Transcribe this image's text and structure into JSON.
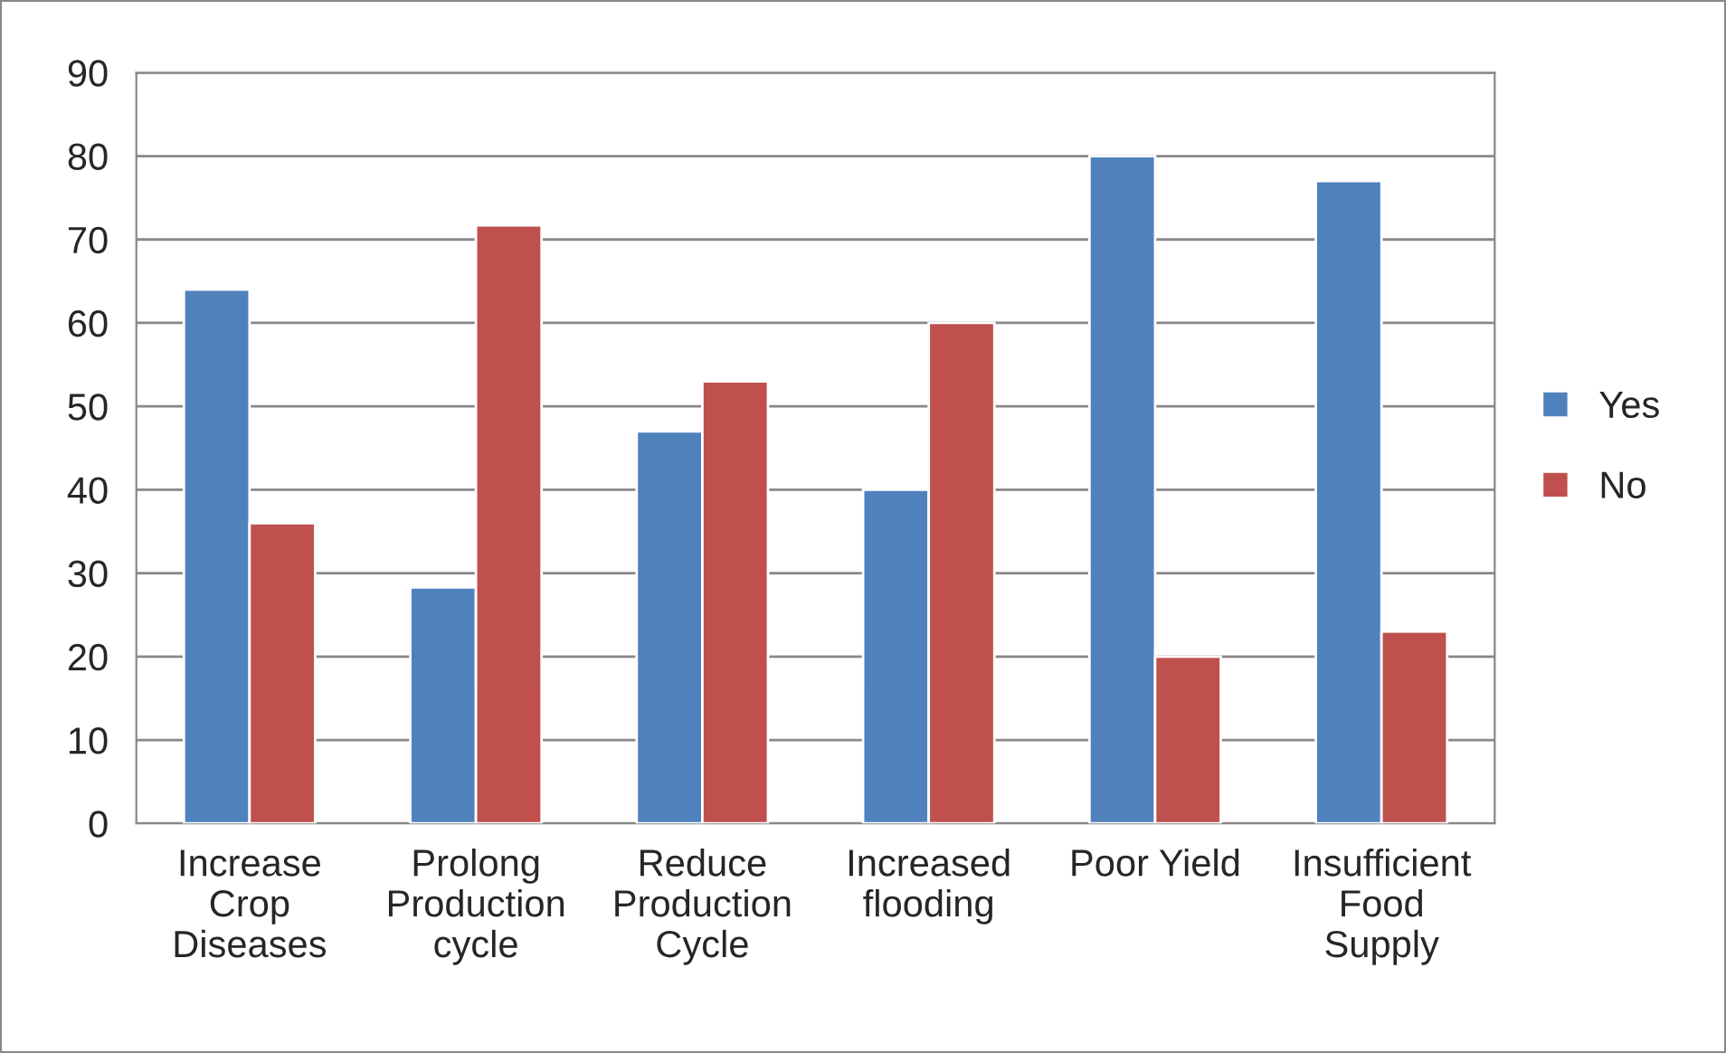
{
  "chart_data": {
    "type": "bar",
    "categories": [
      "Increase\nCrop\nDiseases",
      "Prolong\nProduction\ncycle",
      "Reduce\nProduction\nCycle",
      "Increased\nflooding",
      "Poor Yield",
      "Insufficient\nFood\nSupply"
    ],
    "series": [
      {
        "name": "Yes",
        "color": "#4f81bd",
        "values": [
          64,
          28.3,
          47,
          40,
          80,
          77
        ]
      },
      {
        "name": "No",
        "color": "#c0504d",
        "values": [
          36,
          71.7,
          53,
          60,
          20,
          23
        ]
      }
    ],
    "ylim": [
      0,
      90
    ],
    "yticks": [
      0,
      10,
      20,
      30,
      40,
      50,
      60,
      70,
      80,
      90
    ],
    "grid": "y",
    "legend": "right"
  }
}
